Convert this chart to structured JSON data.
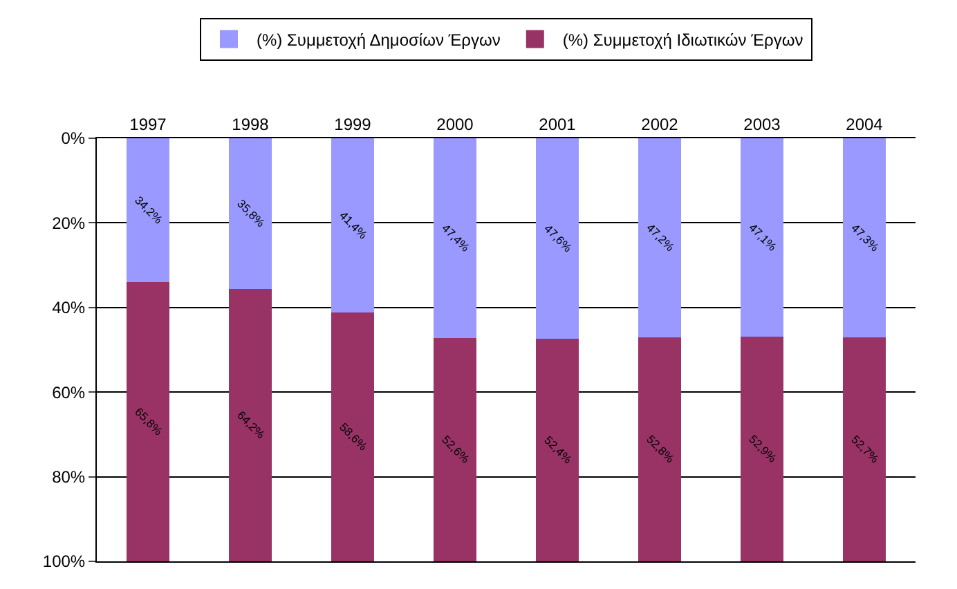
{
  "chart_data": {
    "type": "bar",
    "stacked": true,
    "categories": [
      "1997",
      "1998",
      "1999",
      "2000",
      "2001",
      "2002",
      "2003",
      "2004"
    ],
    "series": [
      {
        "name": "(%) Συμμετοχή Δημοσίων Έργων",
        "color": "#9999ff",
        "values": [
          34.2,
          35.8,
          41.4,
          47.4,
          47.6,
          47.2,
          47.1,
          47.3
        ],
        "value_labels": [
          "34,2%",
          "35,8%",
          "41,4%",
          "47,4%",
          "47,6%",
          "47,2%",
          "47,1%",
          "47,3%"
        ]
      },
      {
        "name": "(%) Συμμετοχή Ιδιωτικών Έργων",
        "color": "#993366",
        "values": [
          65.8,
          64.2,
          58.6,
          52.6,
          52.4,
          52.8,
          52.9,
          52.7
        ],
        "value_labels": [
          "65,8%",
          "64,2%",
          "58,6%",
          "52,6%",
          "52,4%",
          "52,8%",
          "52,9%",
          "52,7%"
        ]
      }
    ],
    "ylim": [
      100,
      0
    ],
    "yticks": [
      {
        "value": 0,
        "label": "0%"
      },
      {
        "value": 20,
        "label": "20%"
      },
      {
        "value": 40,
        "label": "40%"
      },
      {
        "value": 60,
        "label": "60%"
      },
      {
        "value": 80,
        "label": "80%"
      },
      {
        "value": 100,
        "label": "100%"
      }
    ],
    "grid": "y",
    "legend": "top"
  }
}
